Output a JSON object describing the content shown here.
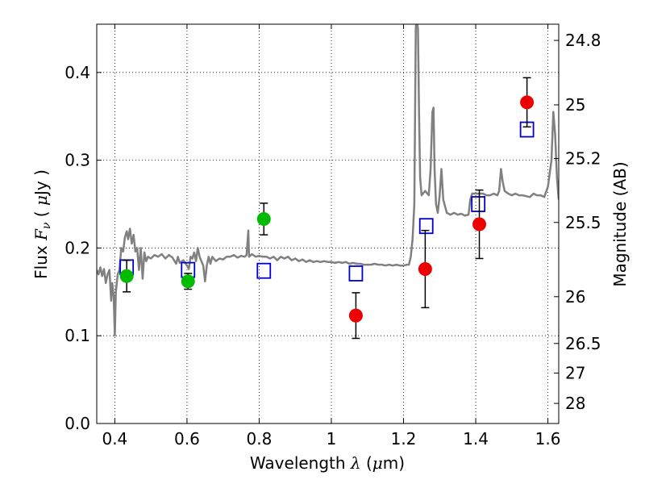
{
  "chart_data": {
    "type": "scatter",
    "xlabel": "Wavelength  λ (μm)",
    "ylabel": "Flux  F_ν  ( μJy )",
    "y2label": "Magnitude (AB)",
    "xlim": [
      0.35,
      1.63
    ],
    "ylim": [
      0.0,
      0.455
    ],
    "grid": true,
    "legend": "none",
    "x_ticks": [
      {
        "value": 0.4,
        "label": "0.4"
      },
      {
        "value": 0.6,
        "label": "0.6"
      },
      {
        "value": 0.8,
        "label": "0.8"
      },
      {
        "value": 1.0,
        "label": "1"
      },
      {
        "value": 1.2,
        "label": "1.2"
      },
      {
        "value": 1.4,
        "label": "1.4"
      },
      {
        "value": 1.6,
        "label": "1.6"
      }
    ],
    "y_ticks": [
      {
        "value": 0.0,
        "label": "0.0"
      },
      {
        "value": 0.1,
        "label": "0.1"
      },
      {
        "value": 0.2,
        "label": "0.2"
      },
      {
        "value": 0.3,
        "label": "0.3"
      },
      {
        "value": 0.4,
        "label": "0.4"
      }
    ],
    "y2_ticks": [
      {
        "flux": 0.4365,
        "label": "24.8"
      },
      {
        "flux": 0.3631,
        "label": "25"
      },
      {
        "flux": 0.302,
        "label": "25.2"
      },
      {
        "flux": 0.2291,
        "label": "25.5"
      },
      {
        "flux": 0.1445,
        "label": "26"
      },
      {
        "flux": 0.0912,
        "label": "26.5"
      },
      {
        "flux": 0.0575,
        "label": "27"
      },
      {
        "flux": 0.0229,
        "label": "28"
      }
    ],
    "colors": {
      "model": "#808080",
      "green": "#00bb00",
      "red": "#ee0000",
      "square": "#0000cc",
      "errorbar": "#000000"
    },
    "series": [
      {
        "kind": "line",
        "color": "#808080",
        "points": [
          [
            0.35,
            0.175
          ],
          [
            0.355,
            0.17
          ],
          [
            0.36,
            0.178
          ],
          [
            0.365,
            0.168
          ],
          [
            0.37,
            0.176
          ],
          [
            0.375,
            0.16
          ],
          [
            0.38,
            0.17
          ],
          [
            0.385,
            0.175
          ],
          [
            0.39,
            0.14
          ],
          [
            0.393,
            0.16
          ],
          [
            0.397,
            0.145
          ],
          [
            0.4,
            0.1
          ],
          [
            0.403,
            0.15
          ],
          [
            0.408,
            0.17
          ],
          [
            0.413,
            0.175
          ],
          [
            0.418,
            0.2
          ],
          [
            0.423,
            0.196
          ],
          [
            0.428,
            0.212
          ],
          [
            0.433,
            0.219
          ],
          [
            0.437,
            0.21
          ],
          [
            0.442,
            0.222
          ],
          [
            0.447,
            0.205
          ],
          [
            0.452,
            0.215
          ],
          [
            0.457,
            0.196
          ],
          [
            0.462,
            0.2
          ],
          [
            0.467,
            0.175
          ],
          [
            0.472,
            0.2
          ],
          [
            0.477,
            0.165
          ],
          [
            0.482,
            0.195
          ],
          [
            0.487,
            0.185
          ],
          [
            0.492,
            0.19
          ],
          [
            0.5,
            0.188
          ],
          [
            0.51,
            0.192
          ],
          [
            0.52,
            0.19
          ],
          [
            0.53,
            0.193
          ],
          [
            0.54,
            0.188
          ],
          [
            0.55,
            0.192
          ],
          [
            0.56,
            0.189
          ],
          [
            0.57,
            0.182
          ],
          [
            0.575,
            0.19
          ],
          [
            0.58,
            0.183
          ],
          [
            0.59,
            0.186
          ],
          [
            0.6,
            0.18
          ],
          [
            0.605,
            0.176
          ],
          [
            0.61,
            0.19
          ],
          [
            0.615,
            0.188
          ],
          [
            0.62,
            0.195
          ],
          [
            0.625,
            0.185
          ],
          [
            0.63,
            0.2
          ],
          [
            0.635,
            0.19
          ],
          [
            0.64,
            0.185
          ],
          [
            0.645,
            0.18
          ],
          [
            0.65,
            0.162
          ],
          [
            0.655,
            0.18
          ],
          [
            0.66,
            0.19
          ],
          [
            0.665,
            0.182
          ],
          [
            0.67,
            0.19
          ],
          [
            0.68,
            0.185
          ],
          [
            0.69,
            0.188
          ],
          [
            0.7,
            0.187
          ],
          [
            0.71,
            0.19
          ],
          [
            0.72,
            0.19
          ],
          [
            0.73,
            0.192
          ],
          [
            0.74,
            0.189
          ],
          [
            0.75,
            0.191
          ],
          [
            0.76,
            0.19
          ],
          [
            0.765,
            0.192
          ],
          [
            0.77,
            0.22
          ],
          [
            0.772,
            0.19
          ],
          [
            0.78,
            0.193
          ],
          [
            0.79,
            0.19
          ],
          [
            0.8,
            0.191
          ],
          [
            0.81,
            0.19
          ],
          [
            0.82,
            0.19
          ],
          [
            0.83,
            0.188
          ],
          [
            0.84,
            0.19
          ],
          [
            0.85,
            0.186
          ],
          [
            0.86,
            0.19
          ],
          [
            0.87,
            0.188
          ],
          [
            0.88,
            0.19
          ],
          [
            0.89,
            0.186
          ],
          [
            0.9,
            0.188
          ],
          [
            0.91,
            0.185
          ],
          [
            0.92,
            0.187
          ],
          [
            0.93,
            0.184
          ],
          [
            0.94,
            0.186
          ],
          [
            0.95,
            0.184
          ],
          [
            0.96,
            0.185
          ],
          [
            0.97,
            0.184
          ],
          [
            0.98,
            0.185
          ],
          [
            0.99,
            0.184
          ],
          [
            1.0,
            0.184
          ],
          [
            1.01,
            0.183
          ],
          [
            1.02,
            0.184
          ],
          [
            1.03,
            0.183
          ],
          [
            1.04,
            0.184
          ],
          [
            1.05,
            0.182
          ],
          [
            1.06,
            0.183
          ],
          [
            1.07,
            0.182
          ],
          [
            1.08,
            0.182
          ],
          [
            1.09,
            0.181
          ],
          [
            1.1,
            0.181
          ],
          [
            1.11,
            0.181
          ],
          [
            1.12,
            0.182
          ],
          [
            1.13,
            0.181
          ],
          [
            1.14,
            0.181
          ],
          [
            1.15,
            0.18
          ],
          [
            1.16,
            0.181
          ],
          [
            1.17,
            0.18
          ],
          [
            1.18,
            0.181
          ],
          [
            1.19,
            0.18
          ],
          [
            1.2,
            0.18
          ],
          [
            1.21,
            0.181
          ],
          [
            1.215,
            0.181
          ],
          [
            1.22,
            0.19
          ],
          [
            1.225,
            0.21
          ],
          [
            1.23,
            0.25
          ],
          [
            1.234,
            0.45
          ],
          [
            1.236,
            0.46
          ],
          [
            1.24,
            0.45
          ],
          [
            1.243,
            0.35
          ],
          [
            1.246,
            0.28
          ],
          [
            1.25,
            0.26
          ],
          [
            1.26,
            0.265
          ],
          [
            1.27,
            0.26
          ],
          [
            1.275,
            0.29
          ],
          [
            1.28,
            0.355
          ],
          [
            1.283,
            0.36
          ],
          [
            1.286,
            0.29
          ],
          [
            1.29,
            0.25
          ],
          [
            1.295,
            0.24
          ],
          [
            1.3,
            0.26
          ],
          [
            1.305,
            0.29
          ],
          [
            1.31,
            0.255
          ],
          [
            1.32,
            0.24
          ],
          [
            1.33,
            0.238
          ],
          [
            1.34,
            0.24
          ],
          [
            1.35,
            0.238
          ],
          [
            1.36,
            0.239
          ],
          [
            1.37,
            0.237
          ],
          [
            1.38,
            0.238
          ],
          [
            1.385,
            0.255
          ],
          [
            1.39,
            0.262
          ],
          [
            1.4,
            0.262
          ],
          [
            1.41,
            0.262
          ],
          [
            1.42,
            0.262
          ],
          [
            1.43,
            0.26
          ],
          [
            1.44,
            0.26
          ],
          [
            1.45,
            0.262
          ],
          [
            1.46,
            0.26
          ],
          [
            1.465,
            0.265
          ],
          [
            1.47,
            0.29
          ],
          [
            1.475,
            0.275
          ],
          [
            1.48,
            0.265
          ],
          [
            1.49,
            0.262
          ],
          [
            1.5,
            0.26
          ],
          [
            1.51,
            0.262
          ],
          [
            1.52,
            0.26
          ],
          [
            1.53,
            0.26
          ],
          [
            1.54,
            0.259
          ],
          [
            1.55,
            0.258
          ],
          [
            1.56,
            0.262
          ],
          [
            1.57,
            0.26
          ],
          [
            1.58,
            0.26
          ],
          [
            1.59,
            0.258
          ],
          [
            1.6,
            0.27
          ],
          [
            1.61,
            0.3
          ],
          [
            1.615,
            0.355
          ],
          [
            1.62,
            0.33
          ],
          [
            1.625,
            0.28
          ],
          [
            1.63,
            0.255
          ]
        ]
      },
      {
        "kind": "squares",
        "color": "#0000cc",
        "points": [
          [
            0.433,
            0.178
          ],
          [
            0.603,
            0.175
          ],
          [
            0.813,
            0.174
          ],
          [
            1.068,
            0.171
          ],
          [
            1.263,
            0.225
          ],
          [
            1.407,
            0.25
          ],
          [
            1.542,
            0.335
          ]
        ]
      },
      {
        "kind": "points",
        "color": "#00bb00",
        "points": [
          {
            "x": 0.433,
            "y": 0.168,
            "yerr": 0.018
          },
          {
            "x": 0.603,
            "y": 0.162,
            "yerr": 0.009
          },
          {
            "x": 0.813,
            "y": 0.233,
            "yerr": 0.018
          }
        ]
      },
      {
        "kind": "points",
        "color": "#ee0000",
        "points": [
          {
            "x": 1.068,
            "y": 0.123,
            "yerr": 0.026
          },
          {
            "x": 1.26,
            "y": 0.176,
            "yerr": 0.044
          },
          {
            "x": 1.41,
            "y": 0.227,
            "yerr": 0.039
          },
          {
            "x": 1.542,
            "y": 0.366,
            "yerr": 0.028
          }
        ]
      }
    ]
  }
}
